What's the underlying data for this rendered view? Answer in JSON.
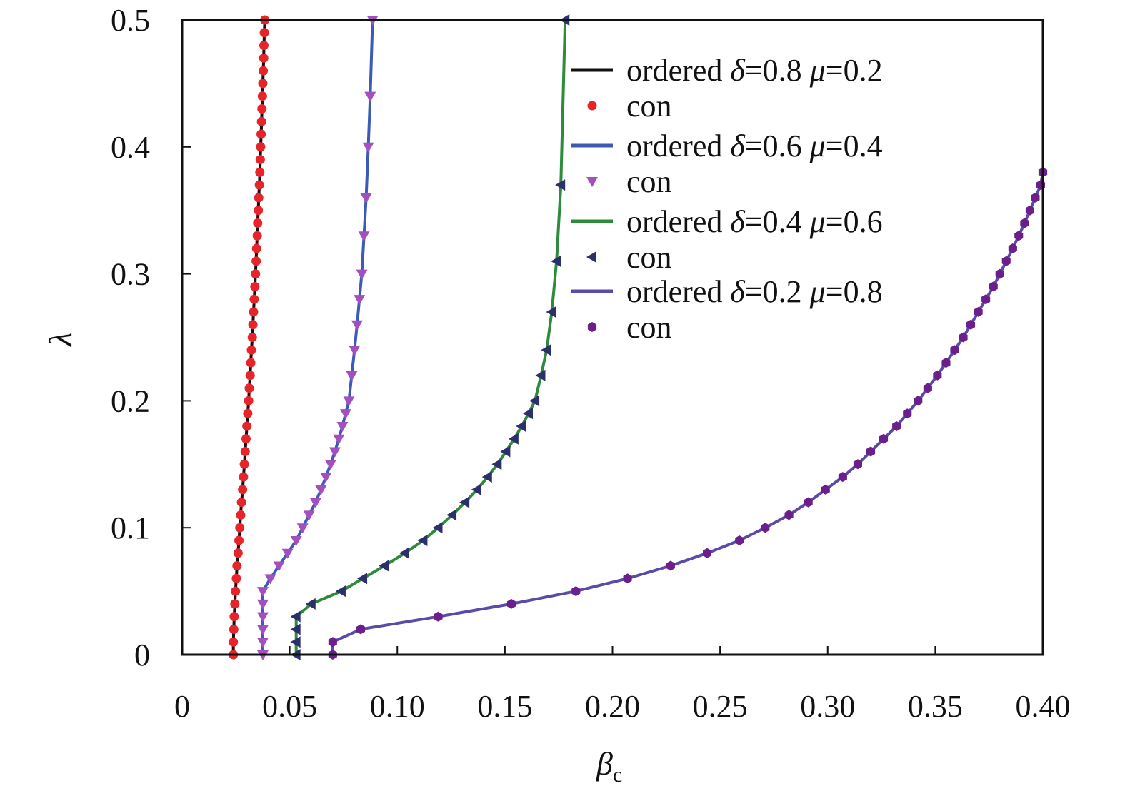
{
  "chart_data": {
    "type": "line",
    "xlabel": "β",
    "xlabel_sub": "c",
    "ylabel": "λ",
    "xlim": [
      0,
      0.4
    ],
    "ylim": [
      0,
      0.5
    ],
    "x_ticks": [
      0,
      0.05,
      0.1,
      0.15,
      0.2,
      0.25,
      0.3,
      0.35,
      0.4
    ],
    "x_tick_labels": [
      "0",
      "0.05",
      "0.10",
      "0.15",
      "0.20",
      "0.25",
      "0.30",
      "0.35",
      "0.40"
    ],
    "y_ticks": [
      0,
      0.1,
      0.2,
      0.3,
      0.4,
      0.5
    ],
    "y_tick_labels": [
      "0",
      "0.1",
      "0.2",
      "0.3",
      "0.4",
      "0.5"
    ],
    "grid": false,
    "legend_position": "top-right",
    "series": [
      {
        "name": "ordered δ=0.8 μ=0.2",
        "line_name": "ordered",
        "delta": "0.8",
        "mu": "0.2",
        "marker_name": "con",
        "line_color": "#111111",
        "marker_color": "#e8242b",
        "marker": "circle",
        "x": [
          0.0238,
          0.0238,
          0.024,
          0.0242,
          0.0245,
          0.0248,
          0.0252,
          0.0255,
          0.026,
          0.0264,
          0.0268,
          0.0272,
          0.0276,
          0.0281,
          0.0285,
          0.0289,
          0.0293,
          0.0297,
          0.0301,
          0.0305,
          0.0309,
          0.0312,
          0.0316,
          0.0319,
          0.0322,
          0.0326,
          0.0329,
          0.0332,
          0.0335,
          0.0338,
          0.0341,
          0.0344,
          0.0346,
          0.0349,
          0.0351,
          0.0354,
          0.0356,
          0.0359,
          0.0361,
          0.0363,
          0.0365,
          0.0367,
          0.0369,
          0.0371,
          0.0373,
          0.0375,
          0.0377,
          0.0379,
          0.038,
          0.0382,
          0.0384
        ],
        "y": [
          0.0,
          0.01,
          0.02,
          0.03,
          0.04,
          0.05,
          0.06,
          0.07,
          0.08,
          0.09,
          0.1,
          0.11,
          0.12,
          0.13,
          0.14,
          0.15,
          0.16,
          0.17,
          0.18,
          0.19,
          0.2,
          0.21,
          0.22,
          0.23,
          0.24,
          0.25,
          0.26,
          0.27,
          0.28,
          0.29,
          0.3,
          0.31,
          0.32,
          0.33,
          0.34,
          0.35,
          0.36,
          0.37,
          0.38,
          0.39,
          0.4,
          0.41,
          0.42,
          0.43,
          0.44,
          0.45,
          0.46,
          0.47,
          0.48,
          0.49,
          0.5
        ]
      },
      {
        "name": "ordered δ=0.6 μ=0.4",
        "line_name": "ordered",
        "delta": "0.6",
        "mu": "0.4",
        "marker_name": "con",
        "line_color": "#3b5bb5",
        "marker_color": "#a44fbf",
        "marker": "triangle-down",
        "x": [
          0.0375,
          0.0375,
          0.0375,
          0.0375,
          0.0375,
          0.0375,
          0.041,
          0.045,
          0.049,
          0.053,
          0.056,
          0.059,
          0.062,
          0.0645,
          0.0668,
          0.069,
          0.071,
          0.0728,
          0.0745,
          0.076,
          0.0775,
          0.0788,
          0.0801,
          0.0813,
          0.0824,
          0.0835,
          0.0845,
          0.0855,
          0.0865,
          0.0874,
          0.0885
        ],
        "y": [
          0.0,
          0.01,
          0.02,
          0.03,
          0.04,
          0.05,
          0.06,
          0.07,
          0.08,
          0.09,
          0.1,
          0.11,
          0.12,
          0.13,
          0.14,
          0.15,
          0.16,
          0.17,
          0.18,
          0.19,
          0.2,
          0.22,
          0.24,
          0.26,
          0.28,
          0.3,
          0.33,
          0.36,
          0.4,
          0.44,
          0.5
        ]
      },
      {
        "name": "ordered δ=0.4 μ=0.6",
        "line_name": "ordered",
        "delta": "0.4",
        "mu": "0.6",
        "marker_name": "con",
        "line_color": "#2f8a3c",
        "marker_color": "#2b2f6b",
        "marker": "triangle-left",
        "x": [
          0.053,
          0.053,
          0.053,
          0.053,
          0.06,
          0.074,
          0.084,
          0.094,
          0.1035,
          0.112,
          0.119,
          0.1255,
          0.1315,
          0.137,
          0.142,
          0.1465,
          0.1505,
          0.1543,
          0.1578,
          0.161,
          0.164,
          0.1668,
          0.1694,
          0.1718,
          0.174,
          0.176,
          0.178
        ],
        "y": [
          0.0,
          0.01,
          0.02,
          0.03,
          0.04,
          0.05,
          0.06,
          0.07,
          0.08,
          0.09,
          0.1,
          0.11,
          0.12,
          0.13,
          0.14,
          0.15,
          0.16,
          0.17,
          0.18,
          0.19,
          0.2,
          0.22,
          0.24,
          0.27,
          0.31,
          0.37,
          0.5
        ]
      },
      {
        "name": "ordered δ=0.2 μ=0.8",
        "line_name": "ordered",
        "delta": "0.2",
        "mu": "0.8",
        "marker_name": "con",
        "line_color": "#5b4aa8",
        "marker_color": "#6a1f8a",
        "marker": "hexagon",
        "x": [
          0.07,
          0.07,
          0.083,
          0.119,
          0.153,
          0.183,
          0.207,
          0.227,
          0.244,
          0.259,
          0.271,
          0.282,
          0.291,
          0.299,
          0.307,
          0.314,
          0.32,
          0.326,
          0.332,
          0.337,
          0.342,
          0.3465,
          0.351,
          0.355,
          0.359,
          0.363,
          0.3665,
          0.37,
          0.3735,
          0.377,
          0.38,
          0.383,
          0.386,
          0.3888,
          0.3915,
          0.394,
          0.3965,
          0.399,
          0.4
        ],
        "y": [
          0.0,
          0.01,
          0.02,
          0.03,
          0.04,
          0.05,
          0.06,
          0.07,
          0.08,
          0.09,
          0.1,
          0.11,
          0.12,
          0.13,
          0.14,
          0.15,
          0.16,
          0.17,
          0.18,
          0.19,
          0.2,
          0.21,
          0.22,
          0.23,
          0.24,
          0.25,
          0.26,
          0.27,
          0.28,
          0.29,
          0.3,
          0.31,
          0.32,
          0.33,
          0.34,
          0.35,
          0.36,
          0.37,
          0.38
        ]
      }
    ]
  }
}
